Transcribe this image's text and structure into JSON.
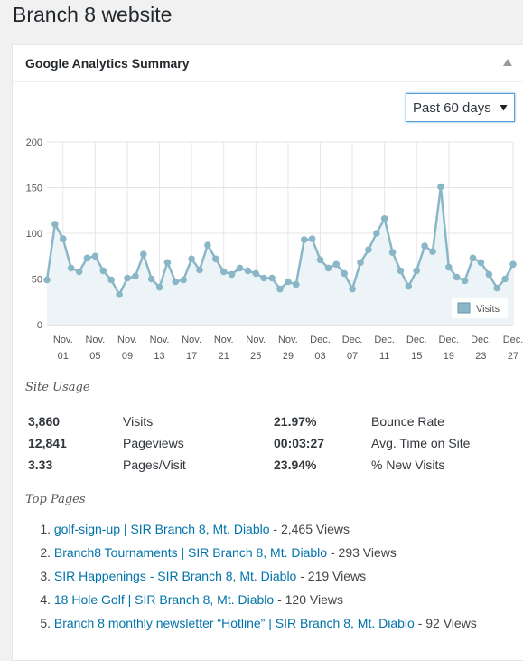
{
  "page": {
    "title": "Branch 8 website"
  },
  "widget": {
    "title": "Google Analytics Summary",
    "period": {
      "selected": "Past 60 days"
    }
  },
  "chart_data": {
    "type": "area",
    "y_ticks": [
      "200",
      "150",
      "100",
      "50",
      "0"
    ],
    "ylim": [
      0,
      200
    ],
    "x_tick_labels": [
      [
        "Nov.",
        "01"
      ],
      [
        "Nov.",
        "05"
      ],
      [
        "Nov.",
        "09"
      ],
      [
        "Nov.",
        "13"
      ],
      [
        "Nov.",
        "17"
      ],
      [
        "Nov.",
        "21"
      ],
      [
        "Nov.",
        "25"
      ],
      [
        "Nov.",
        "29"
      ],
      [
        "Dec.",
        "03"
      ],
      [
        "Dec.",
        "07"
      ],
      [
        "Dec.",
        "11"
      ],
      [
        "Dec.",
        "15"
      ],
      [
        "Dec.",
        "19"
      ],
      [
        "Dec.",
        "23"
      ],
      [
        "Dec.",
        "27"
      ]
    ],
    "legend": "top-right",
    "grid": true,
    "series": [
      {
        "name": "Visits",
        "color": "#8ab7c7",
        "values": [
          49,
          110,
          94,
          62,
          58,
          73,
          75,
          59,
          49,
          33,
          51,
          53,
          77,
          50,
          41,
          68,
          47,
          49,
          72,
          60,
          87,
          72,
          58,
          55,
          62,
          59,
          56,
          51,
          51,
          39,
          47,
          44,
          93,
          94,
          71,
          62,
          66,
          56,
          39,
          68,
          82,
          100,
          116,
          79,
          59,
          42,
          59,
          86,
          80,
          151,
          63,
          52,
          48,
          73,
          68,
          55,
          40,
          50,
          66
        ]
      }
    ]
  },
  "site_usage": {
    "title": "Site Usage",
    "rows": [
      {
        "v1": "3,860",
        "l1": "Visits",
        "v2": "21.97%",
        "l2": "Bounce Rate"
      },
      {
        "v1": "12,841",
        "l1": "Pageviews",
        "v2": "00:03:27",
        "l2": "Avg. Time on Site"
      },
      {
        "v1": "3.33",
        "l1": "Pages/Visit",
        "v2": "23.94%",
        "l2": "% New Visits"
      }
    ]
  },
  "top_pages": {
    "title": "Top Pages",
    "items": [
      {
        "num": "1.",
        "title": "golf-sign-up | SIR Branch 8, Mt. Diablo",
        "views": " - 2,465 Views"
      },
      {
        "num": "2.",
        "title": "Branch8 Tournaments | SIR Branch 8, Mt. Diablo",
        "views": " - 293 Views"
      },
      {
        "num": "3.",
        "title": "SIR Happenings - SIR Branch 8, Mt. Diablo",
        "views": " - 219 Views"
      },
      {
        "num": "4.",
        "title": "18 Hole Golf | SIR Branch 8, Mt. Diablo",
        "views": " - 120 Views"
      },
      {
        "num": "5.",
        "title": "Branch 8 monthly newsletter “Hotline” | SIR Branch 8, Mt. Diablo",
        "views": " - 92 Views"
      }
    ]
  }
}
